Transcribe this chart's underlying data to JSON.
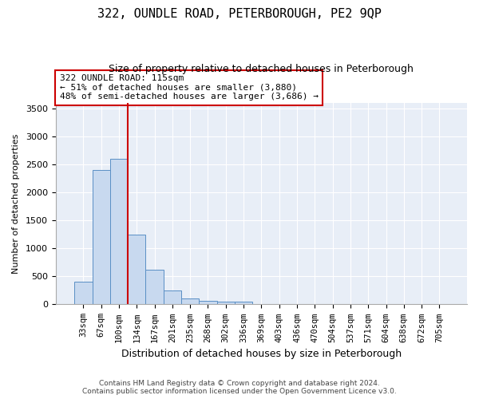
{
  "title": "322, OUNDLE ROAD, PETERBOROUGH, PE2 9QP",
  "subtitle": "Size of property relative to detached houses in Peterborough",
  "xlabel": "Distribution of detached houses by size in Peterborough",
  "ylabel": "Number of detached properties",
  "bar_color": "#c8d9ef",
  "bar_edge_color": "#5a8fc5",
  "background_color": "#e8eef7",
  "categories": [
    "33sqm",
    "67sqm",
    "100sqm",
    "134sqm",
    "167sqm",
    "201sqm",
    "235sqm",
    "268sqm",
    "302sqm",
    "336sqm",
    "369sqm",
    "403sqm",
    "436sqm",
    "470sqm",
    "504sqm",
    "537sqm",
    "571sqm",
    "604sqm",
    "638sqm",
    "672sqm",
    "705sqm"
  ],
  "values": [
    400,
    2400,
    2600,
    1250,
    625,
    250,
    100,
    60,
    55,
    50,
    5,
    0,
    0,
    0,
    0,
    0,
    0,
    0,
    0,
    0,
    0
  ],
  "ylim": [
    0,
    3600
  ],
  "yticks": [
    0,
    500,
    1000,
    1500,
    2000,
    2500,
    3000,
    3500
  ],
  "vline_x": 2.5,
  "vline_color": "#cc0000",
  "annotation_text": "322 OUNDLE ROAD: 115sqm\n← 51% of detached houses are smaller (3,880)\n48% of semi-detached houses are larger (3,686) →",
  "annotation_box_color": "#ffffff",
  "annotation_box_edge": "#cc0000",
  "footer_line1": "Contains HM Land Registry data © Crown copyright and database right 2024.",
  "footer_line2": "Contains public sector information licensed under the Open Government Licence v3.0."
}
